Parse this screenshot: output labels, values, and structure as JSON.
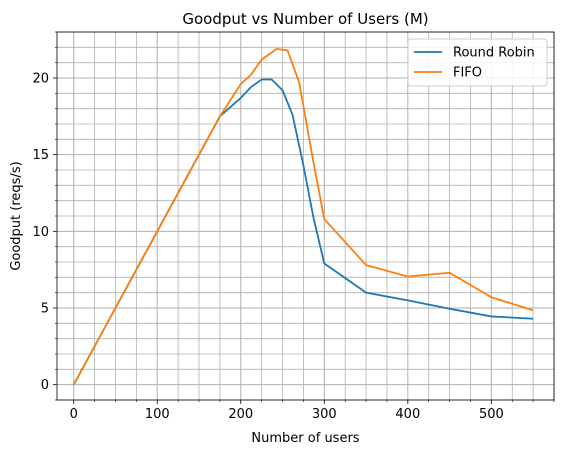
{
  "chart_data": {
    "type": "line",
    "title": "Goodput vs Number of Users (M)",
    "xlabel": "Number of users",
    "ylabel": "Goodput (reqs/s)",
    "xlim": [
      -20,
      575
    ],
    "ylim": [
      -1,
      23
    ],
    "xticks": [
      0,
      100,
      200,
      300,
      400,
      500
    ],
    "yticks": [
      0,
      5,
      10,
      15,
      20
    ],
    "grid": true,
    "minor_grid": true,
    "legend_position": "top-right",
    "series": [
      {
        "name": "Round Robin",
        "color": "#1f77b4",
        "x": [
          0,
          50,
          100,
          150,
          175,
          200,
          212,
          225,
          237,
          250,
          262,
          275,
          287,
          300,
          350,
          400,
          450,
          500,
          550
        ],
        "y": [
          0,
          5,
          10,
          15,
          17.5,
          18.7,
          19.4,
          19.9,
          19.9,
          19.2,
          17.6,
          14.3,
          10.9,
          7.9,
          6.0,
          5.5,
          4.95,
          4.45,
          4.3
        ]
      },
      {
        "name": "FIFO",
        "color": "#ff7f0e",
        "x": [
          0,
          50,
          100,
          150,
          175,
          200,
          212,
          225,
          243,
          256,
          270,
          287,
          300,
          350,
          400,
          450,
          500,
          550
        ],
        "y": [
          0,
          5,
          10,
          15,
          17.5,
          19.6,
          20.2,
          21.2,
          21.9,
          21.8,
          19.7,
          14.5,
          10.8,
          7.8,
          7.05,
          7.3,
          5.7,
          4.85
        ]
      }
    ]
  }
}
